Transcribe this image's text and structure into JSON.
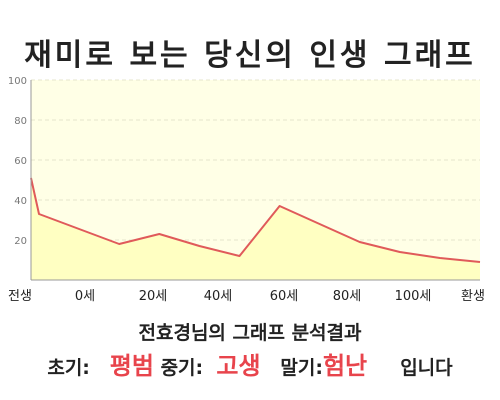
{
  "chart_data": {
    "type": "area",
    "title": "재미로 보는 당신의 인생 그래프",
    "x": [
      -2,
      0,
      20,
      30,
      40,
      50,
      60,
      70,
      80,
      90,
      100,
      110
    ],
    "x_tick_labels": [
      "전생",
      "0세",
      "20세",
      "40세",
      "60세",
      "80세",
      "100세",
      "환생"
    ],
    "values": [
      51,
      33,
      18,
      23,
      17,
      12,
      37,
      28,
      19,
      14,
      11,
      9
    ],
    "ylim": [
      0,
      100
    ],
    "yticks": [
      20,
      40,
      60,
      80,
      100
    ],
    "grid": true,
    "colors": {
      "line": "#e05a5a",
      "fill": "#ffffc2",
      "background": "#ffffe6",
      "grid": "#e6e6cc"
    }
  },
  "result": {
    "title": "전효경님의 그래프 분석결과",
    "early_label": "초기:",
    "early_value": "평범",
    "middle_label": "중기:",
    "middle_value": "고생",
    "late_label": "말기:",
    "late_value": "험난",
    "suffix": "입니다"
  }
}
